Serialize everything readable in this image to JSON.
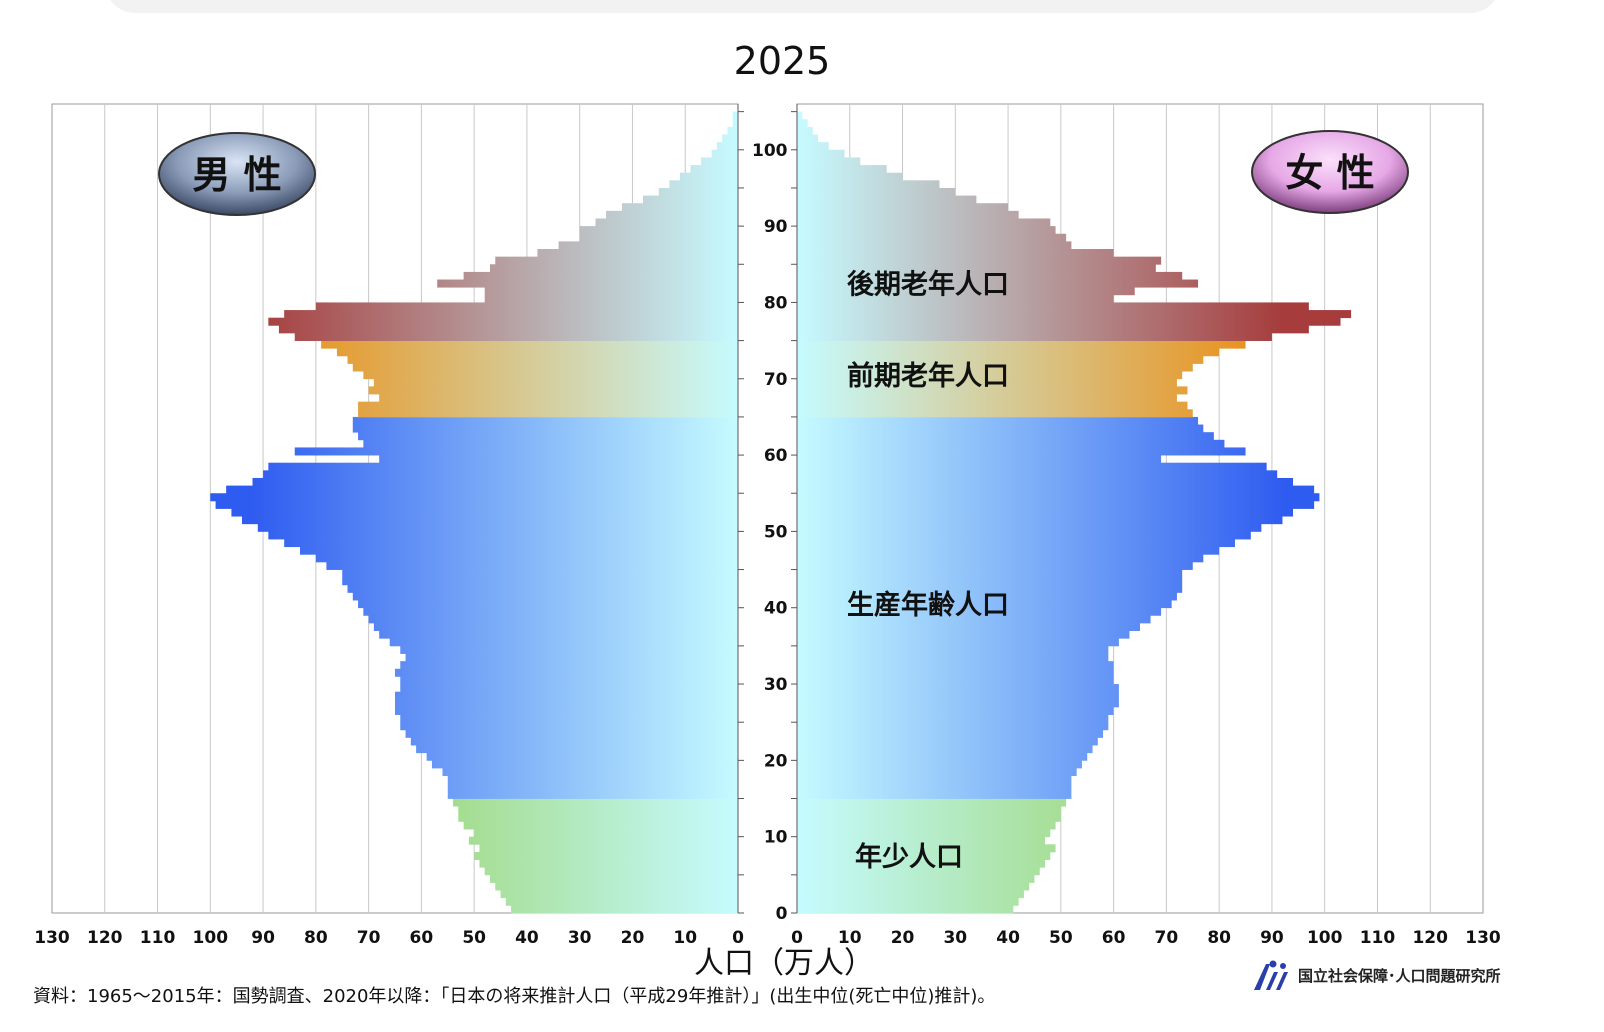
{
  "chart_data": {
    "type": "bar",
    "subtype": "population-pyramid",
    "title": "2025",
    "xlabel": "人口（万人）",
    "ylabel": "",
    "xlim": [
      0,
      130
    ],
    "x_ticks": [
      0,
      10,
      20,
      30,
      40,
      50,
      60,
      70,
      80,
      90,
      100,
      110,
      120,
      130
    ],
    "y_ticks": [
      0,
      10,
      20,
      30,
      40,
      50,
      60,
      70,
      80,
      90,
      100
    ],
    "ages": [
      0,
      1,
      2,
      3,
      4,
      5,
      6,
      7,
      8,
      9,
      10,
      11,
      12,
      13,
      14,
      15,
      16,
      17,
      18,
      19,
      20,
      21,
      22,
      23,
      24,
      25,
      26,
      27,
      28,
      29,
      30,
      31,
      32,
      33,
      34,
      35,
      36,
      37,
      38,
      39,
      40,
      41,
      42,
      43,
      44,
      45,
      46,
      47,
      48,
      49,
      50,
      51,
      52,
      53,
      54,
      55,
      56,
      57,
      58,
      59,
      60,
      61,
      62,
      63,
      64,
      65,
      66,
      67,
      68,
      69,
      70,
      71,
      72,
      73,
      74,
      75,
      76,
      77,
      78,
      79,
      80,
      81,
      82,
      83,
      84,
      85,
      86,
      87,
      88,
      89,
      90,
      91,
      92,
      93,
      94,
      95,
      96,
      97,
      98,
      99,
      100,
      101,
      102,
      103,
      104,
      105
    ],
    "series": [
      {
        "name": "男性",
        "values": [
          43,
          44,
          45,
          46,
          47,
          48,
          49,
          50,
          49,
          51,
          50,
          52,
          53,
          53,
          54,
          55,
          55,
          55,
          56,
          58,
          59,
          61,
          62,
          63,
          64,
          64,
          65,
          65,
          65,
          64,
          64,
          65,
          64,
          63,
          64,
          66,
          68,
          69,
          70,
          71,
          72,
          73,
          74,
          75,
          75,
          78,
          80,
          83,
          86,
          89,
          91,
          94,
          96,
          99,
          100,
          97,
          92,
          90,
          89,
          68,
          84,
          71,
          72,
          73,
          73,
          72,
          72,
          68,
          70,
          69,
          71,
          73,
          74,
          76,
          79,
          84,
          87,
          89,
          86,
          80,
          48,
          48,
          57,
          52,
          47,
          46,
          38,
          34,
          30,
          30,
          27,
          25,
          22,
          18,
          15,
          13,
          11,
          9,
          7,
          5,
          4,
          3,
          2,
          1,
          1,
          0
        ]
      },
      {
        "name": "女性",
        "values": [
          41,
          42,
          43,
          44,
          45,
          46,
          47,
          48,
          49,
          47,
          48,
          49,
          50,
          50,
          51,
          52,
          52,
          52,
          53,
          54,
          55,
          56,
          57,
          58,
          59,
          59,
          60,
          61,
          61,
          61,
          60,
          60,
          60,
          59,
          59,
          61,
          63,
          65,
          67,
          69,
          71,
          72,
          73,
          73,
          73,
          75,
          77,
          80,
          83,
          86,
          88,
          92,
          94,
          98,
          99,
          98,
          94,
          91,
          89,
          69,
          85,
          81,
          79,
          77,
          76,
          75,
          74,
          72,
          74,
          72,
          73,
          75,
          77,
          80,
          85,
          90,
          97,
          103,
          105,
          97,
          60,
          64,
          76,
          73,
          68,
          69,
          60,
          52,
          51,
          49,
          48,
          42,
          40,
          34,
          30,
          27,
          20,
          17,
          12,
          9,
          6,
          4,
          3,
          2,
          1,
          0
        ]
      }
    ],
    "bands": [
      {
        "label": "年少人口",
        "from_age": 0,
        "to_age": 14,
        "color": "#8cc63f"
      },
      {
        "label": "生産年齢人口",
        "from_age": 15,
        "to_age": 64,
        "color": "#2f5cf0"
      },
      {
        "label": "前期老年人口",
        "from_age": 65,
        "to_age": 74,
        "color": "#eb8a0c"
      },
      {
        "label": "後期老年人口",
        "from_age": 75,
        "to_age": 105,
        "color": "#a63c3c"
      }
    ],
    "grid": true
  },
  "labels": {
    "male": "男 性",
    "female": "女 性"
  },
  "footer": {
    "source": "資料：1965～2015年：国勢調査、2020年以降：「日本の将来推計人口（平成29年推計）」(出生中位(死亡中位)推計)。",
    "org": "国立社会保障･人口問題研究所"
  },
  "icons": {
    "org_logo": "ipss-logo-icon"
  }
}
